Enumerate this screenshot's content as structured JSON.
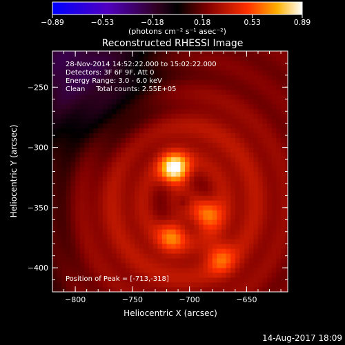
{
  "chart_data": {
    "type": "heatmap",
    "title": "Reconstructed RHESSI Image",
    "colorbar": {
      "ticks": [
        "−0.89",
        "−0.53",
        "−0.18",
        "0.18",
        "0.53",
        "0.89"
      ],
      "range": [
        -0.89,
        0.89
      ],
      "unit_label": "(photons cm⁻² s⁻¹ asec⁻²)",
      "colors": [
        "#0000ff",
        "#5000c0",
        "#300020",
        "#000000",
        "#800000",
        "#ff3000",
        "#ffb000",
        "#ffffff"
      ]
    },
    "xlabel": "Heliocentric X (arcsec)",
    "ylabel": "Heliocentric Y (arcsec)",
    "xlim": [
      -820,
      -614
    ],
    "ylim": [
      -420,
      -220
    ],
    "xticks": [
      -800,
      -750,
      -700,
      -650
    ],
    "yticks": [
      -250,
      -300,
      -350,
      -400
    ],
    "xtick_labels": [
      "−800",
      "−750",
      "−700",
      "−650"
    ],
    "ytick_labels": [
      "−250",
      "−300",
      "−350",
      "−400"
    ],
    "annotations": [
      "28-Nov-2014 14:52:22.000 to 15:02:22.000",
      "Detectors: 3F 6F 9F, Att 0",
      "Energy Range: 3.0 - 6.0 keV",
      "Clean     Total counts: 2.55E+05"
    ],
    "peak_label": "Position of Peak = [-713,-318]",
    "peak": [
      -713,
      -318
    ],
    "sources": [
      {
        "x": -713,
        "y": -318,
        "intensity": 0.89
      },
      {
        "x": -685,
        "y": -355,
        "intensity": 0.62
      },
      {
        "x": -715,
        "y": -373,
        "intensity": 0.55
      },
      {
        "x": -673,
        "y": -392,
        "intensity": 0.48
      }
    ]
  },
  "footer": {
    "timestamp": "14-Aug-2017 18:09"
  }
}
